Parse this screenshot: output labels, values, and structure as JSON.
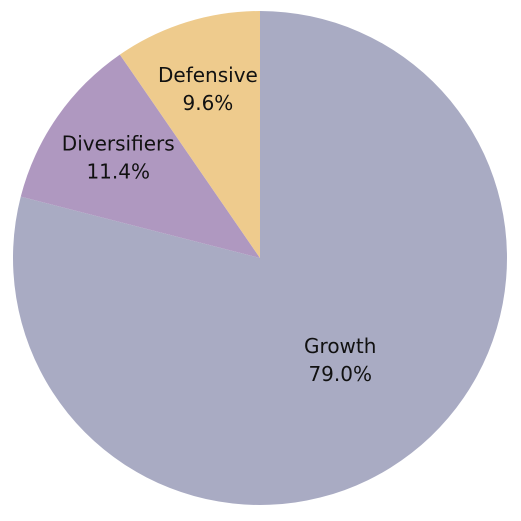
{
  "chart_data": {
    "type": "pie",
    "start_angle": "12 o'clock",
    "direction": "clockwise",
    "slices": [
      {
        "label": "Growth",
        "value": 79.0,
        "value_text": "79.0%",
        "color": "#a9abc3"
      },
      {
        "label": "Diversifiers",
        "value": 11.4,
        "value_text": "11.4%",
        "color": "#af98c0"
      },
      {
        "label": "Defensive",
        "value": 9.6,
        "value_text": "9.6%",
        "color": "#eecb8d"
      }
    ]
  }
}
